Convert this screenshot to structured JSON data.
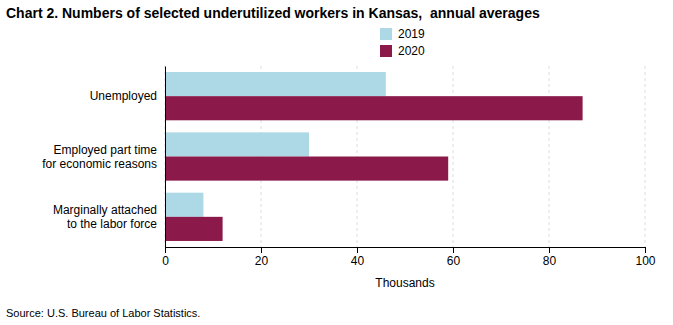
{
  "chart_data": {
    "type": "bar",
    "orientation": "horizontal",
    "title": "Chart 2. Numbers of selected underutilized workers in Kansas,  annual averages",
    "categories": [
      "Unemployed",
      "Employed part time\nfor economic reasons",
      "Marginally attached\nto the labor force"
    ],
    "series": [
      {
        "name": "2019",
        "color": "#add8e6",
        "values": [
          46,
          30,
          8
        ]
      },
      {
        "name": "2020",
        "color": "#8b1a4a",
        "values": [
          87,
          59,
          12
        ]
      }
    ],
    "xlabel": "Thousands",
    "xlim": [
      0,
      100
    ],
    "xticks": [
      0,
      20,
      40,
      60,
      80,
      100
    ],
    "grid": true,
    "legend": "top",
    "annotations": [
      "Source: U.S. Bureau of Labor Statistics."
    ]
  }
}
